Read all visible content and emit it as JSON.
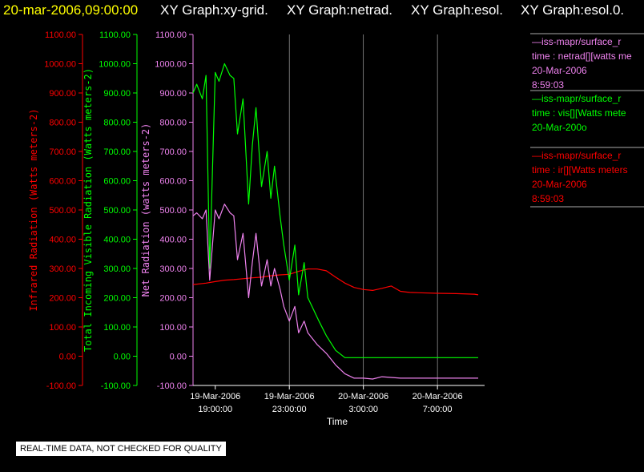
{
  "title": {
    "timestamp": "20-mar-2006,09:00:00",
    "graphs": [
      "XY Graph:xy-grid.",
      "XY Graph:netrad.",
      "XY Graph:esol.",
      "XY Graph:esol.0."
    ],
    "timestamp_color": "#ffff00",
    "graphs_color": "#ffffff"
  },
  "legend": [
    {
      "lines": [
        "—iss-mapr/surface_r",
        "time : netrad[][watts me",
        "20-Mar-2006",
        "8:59:03"
      ],
      "color": "#ee82ee"
    },
    {
      "lines": [
        "—iss-mapr/surface_r",
        "time : vis[][Watts mete",
        "20-Mar-200o"
      ],
      "color": "#00ff00"
    },
    {
      "lines": [
        "—iss-mapr/surface_r",
        "time : ir[][Watts meters",
        "20-Mar-2006",
        "8:59:03"
      ],
      "color": "#ff0000"
    }
  ],
  "notice": "REAL-TIME DATA, NOT CHECKED FOR QUALITY",
  "chart_data": {
    "type": "line",
    "xlabel": "Time",
    "x_ticks": [
      {
        "top": "19-Mar-2006",
        "bottom": "19:00:00",
        "hours": 0
      },
      {
        "top": "19-Mar-2006",
        "bottom": "23:00:00",
        "hours": 4
      },
      {
        "top": "20-Mar-2006",
        "bottom": "3:00:00",
        "hours": 8
      },
      {
        "top": "20-Mar-2006",
        "bottom": "7:00:00",
        "hours": 12
      }
    ],
    "xlim_hours": [
      -1.2,
      14.2
    ],
    "y_axes": [
      {
        "label": "Infrared Radiation (Watts meters-2)",
        "color": "#ff0000",
        "ticks": [
          "1100.00",
          "1000.00",
          "900.00",
          "800.00",
          "700.00",
          "600.00",
          "500.00",
          "400.00",
          "300.00",
          "200.00",
          "100.00",
          "0.00",
          "-100.00"
        ]
      },
      {
        "label": "Total Incoming Visible Radiation (Watts meters-2)",
        "color": "#00ff00",
        "ticks": [
          "1100.00",
          "1000.00",
          "900.00",
          "800.00",
          "700.00",
          "600.00",
          "500.00",
          "400.00",
          "300.00",
          "200.00",
          "100.00",
          "0.00",
          "-100.00"
        ]
      },
      {
        "label": "Net Radiation (watts meters-2)",
        "color": "#ee82ee",
        "ticks": [
          "1100.00",
          "1000.00",
          "900.00",
          "800.00",
          "700.00",
          "600.00",
          "500.00",
          "400.00",
          "300.00",
          "200.00",
          "100.00",
          "0.00",
          "-100.00"
        ]
      }
    ],
    "ylim": [
      -100,
      1100
    ],
    "grid": "vertical",
    "series": [
      {
        "color": "#ff0000",
        "hours": [
          -1.2,
          -0.5,
          0,
          0.5,
          1,
          1.5,
          2,
          2.5,
          3,
          3.5,
          4,
          4.5,
          5,
          5.5,
          6,
          6.5,
          7,
          7.5,
          8,
          8.5,
          9,
          9.5,
          10,
          10.5,
          11,
          12,
          13,
          14,
          14.2
        ],
        "values": [
          245,
          250,
          255,
          260,
          262,
          265,
          268,
          270,
          275,
          278,
          280,
          290,
          298,
          298,
          292,
          270,
          250,
          235,
          228,
          225,
          232,
          240,
          222,
          218,
          217,
          215,
          214,
          212,
          210
        ]
      },
      {
        "color": "#00ff00",
        "hours": [
          -1.2,
          -1,
          -0.7,
          -0.5,
          -0.3,
          0,
          0.2,
          0.5,
          0.8,
          1,
          1.2,
          1.5,
          1.8,
          2,
          2.2,
          2.5,
          2.8,
          3,
          3.2,
          3.5,
          3.7,
          4,
          4.3,
          4.5,
          4.8,
          5,
          5.3,
          5.6,
          6,
          6.5,
          7,
          7.5,
          8,
          8.5,
          9,
          10,
          11,
          12,
          13,
          14,
          14.2
        ],
        "values": [
          900,
          930,
          880,
          960,
          300,
          970,
          940,
          1000,
          960,
          950,
          760,
          880,
          520,
          720,
          850,
          580,
          700,
          540,
          650,
          480,
          380,
          260,
          380,
          210,
          320,
          200,
          160,
          120,
          70,
          20,
          -5,
          -5,
          -5,
          -5,
          -5,
          -5,
          -5,
          -5,
          -5,
          -5,
          -5
        ]
      },
      {
        "color": "#ee82ee",
        "hours": [
          -1.2,
          -1,
          -0.7,
          -0.5,
          -0.3,
          0,
          0.2,
          0.5,
          0.8,
          1,
          1.2,
          1.5,
          1.8,
          2,
          2.2,
          2.5,
          2.8,
          3,
          3.2,
          3.5,
          3.7,
          4,
          4.3,
          4.5,
          4.8,
          5,
          5.5,
          6,
          6.5,
          7,
          7.5,
          8,
          8.5,
          9,
          10,
          11,
          12,
          13,
          14,
          14.2
        ],
        "values": [
          480,
          490,
          470,
          500,
          260,
          500,
          470,
          520,
          490,
          480,
          330,
          420,
          200,
          320,
          420,
          240,
          330,
          240,
          300,
          230,
          170,
          120,
          170,
          80,
          120,
          80,
          40,
          10,
          -30,
          -60,
          -75,
          -75,
          -78,
          -70,
          -75,
          -75,
          -75,
          -75,
          -75,
          -75
        ]
      }
    ]
  }
}
